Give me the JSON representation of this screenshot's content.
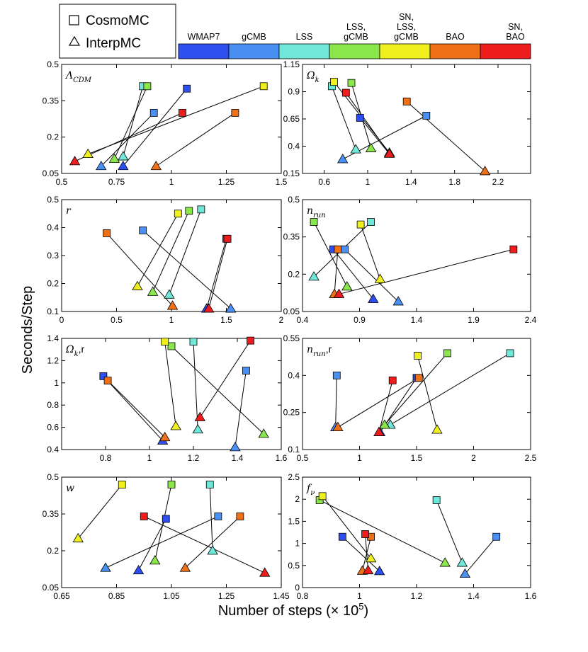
{
  "chart_data": {
    "type": "scatter",
    "x_axis_label": "Number of steps (× 10",
    "x_axis_label_sup": "5",
    "x_axis_label_end": ")",
    "y_axis_label": "Seconds/Step",
    "legend": [
      {
        "name": "CosmoMC",
        "marker": "square"
      },
      {
        "name": "InterpMC",
        "marker": "triangle"
      }
    ],
    "colorbar": [
      {
        "lines": [
          "WMAP7"
        ],
        "color": "#2d4ef0"
      },
      {
        "lines": [
          "gCMB"
        ],
        "color": "#4a8ff2"
      },
      {
        "lines": [
          "LSS"
        ],
        "color": "#6fe8d9"
      },
      {
        "lines": [
          "LSS,",
          "gCMB"
        ],
        "color": "#8ae64a"
      },
      {
        "lines": [
          "SN,",
          "LSS,",
          "gCMB"
        ],
        "color": "#f0f01e"
      },
      {
        "lines": [
          "BAO"
        ],
        "color": "#f07018"
      },
      {
        "lines": [
          "SN,",
          "BAO"
        ],
        "color": "#ee1c1c"
      }
    ],
    "panels": [
      {
        "label": "Λ",
        "sub": "CDM",
        "xlim": [
          0.5,
          1.5
        ],
        "ylim": [
          0.05,
          0.5
        ],
        "xticks": [
          "0.5",
          "0.75",
          "1",
          "1.25",
          "1.5"
        ],
        "yticks": [
          "0.05",
          "0.2",
          "0.35",
          "0.5"
        ],
        "xticks_v": [
          0.5,
          0.75,
          1,
          1.25,
          1.5
        ],
        "yticks_v": [
          0.05,
          0.2,
          0.35,
          0.5
        ],
        "pairs": [
          {
            "set": "WMAP7",
            "cosmo": [
              1.07,
              0.4
            ],
            "interp": [
              0.78,
              0.08
            ]
          },
          {
            "set": "gCMB",
            "cosmo": [
              0.92,
              0.3
            ],
            "interp": [
              0.68,
              0.08
            ]
          },
          {
            "set": "LSS",
            "cosmo": [
              0.87,
              0.41
            ],
            "interp": [
              0.78,
              0.12
            ]
          },
          {
            "set": "LSS,gCMB",
            "cosmo": [
              0.89,
              0.41
            ],
            "interp": [
              0.74,
              0.11
            ]
          },
          {
            "set": "SN,LSS,gCMB",
            "cosmo": [
              1.42,
              0.41
            ],
            "interp": [
              0.62,
              0.13
            ]
          },
          {
            "set": "BAO",
            "cosmo": [
              1.29,
              0.3
            ],
            "interp": [
              0.93,
              0.08
            ]
          },
          {
            "set": "SN,BAO",
            "cosmo": [
              1.05,
              0.3
            ],
            "interp": [
              0.56,
              0.1
            ]
          }
        ]
      },
      {
        "label": "Ω",
        "sub": "k",
        "xlim": [
          0.4,
          2.5
        ],
        "ylim": [
          0.15,
          1.15
        ],
        "xticks": [
          "0.6",
          "1",
          "1.4",
          "1.8",
          "2.2"
        ],
        "yticks": [
          "0.15",
          "0.4",
          "0.65",
          "0.9",
          "1.15"
        ],
        "xticks_v": [
          0.6,
          1,
          1.4,
          1.8,
          2.2
        ],
        "yticks_v": [
          0.15,
          0.4,
          0.65,
          0.9,
          1.15
        ],
        "pairs": [
          {
            "set": "WMAP7",
            "cosmo": [
              0.93,
              0.66
            ],
            "interp": [
              1.2,
              0.33
            ]
          },
          {
            "set": "gCMB",
            "cosmo": [
              1.54,
              0.68
            ],
            "interp": [
              0.77,
              0.28
            ]
          },
          {
            "set": "LSS",
            "cosmo": [
              0.67,
              0.95
            ],
            "interp": [
              0.89,
              0.37
            ]
          },
          {
            "set": "LSS,gCMB",
            "cosmo": [
              0.85,
              0.98
            ],
            "interp": [
              1.03,
              0.38
            ]
          },
          {
            "set": "SN,LSS,gCMB",
            "cosmo": [
              0.69,
              0.99
            ],
            "interp": [
              1.2,
              0.34
            ]
          },
          {
            "set": "BAO",
            "cosmo": [
              1.36,
              0.81
            ],
            "interp": [
              2.08,
              0.17
            ]
          },
          {
            "set": "SN,BAO",
            "cosmo": [
              0.8,
              0.89
            ],
            "interp": [
              1.2,
              0.33
            ]
          }
        ]
      },
      {
        "label": "r",
        "sub": "",
        "xlim": [
          0,
          2
        ],
        "ylim": [
          0.1,
          0.5
        ],
        "xticks": [
          "0",
          "0.5",
          "1",
          "1.5",
          "2"
        ],
        "yticks": [
          "0.1",
          "0.2",
          "0.3",
          "0.4",
          "0.5"
        ],
        "xticks_v": [
          0,
          0.5,
          1,
          1.5,
          2
        ],
        "yticks_v": [
          0.1,
          0.2,
          0.3,
          0.4,
          0.5
        ],
        "pairs": [
          {
            "set": "WMAP7",
            "cosmo": [
              1.5,
              0.36
            ],
            "interp": [
              1.32,
              0.11
            ]
          },
          {
            "set": "gCMB",
            "cosmo": [
              0.74,
              0.39
            ],
            "interp": [
              1.54,
              0.11
            ]
          },
          {
            "set": "LSS",
            "cosmo": [
              1.27,
              0.465
            ],
            "interp": [
              0.98,
              0.16
            ]
          },
          {
            "set": "LSS,gCMB",
            "cosmo": [
              1.16,
              0.46
            ],
            "interp": [
              0.83,
              0.17
            ]
          },
          {
            "set": "SN,LSS,gCMB",
            "cosmo": [
              1.06,
              0.45
            ],
            "interp": [
              0.69,
              0.19
            ]
          },
          {
            "set": "BAO",
            "cosmo": [
              0.41,
              0.38
            ],
            "interp": [
              1.01,
              0.12
            ]
          },
          {
            "set": "SN,BAO",
            "cosmo": [
              1.51,
              0.36
            ],
            "interp": [
              1.34,
              0.11
            ]
          }
        ]
      },
      {
        "label": "n",
        "sub": "run",
        "xlim": [
          0.4,
          2.4
        ],
        "ylim": [
          0.05,
          0.5
        ],
        "xticks": [
          "0.4",
          "0.9",
          "1.4",
          "1.9",
          "2.4"
        ],
        "yticks": [
          "0.05",
          "0.2",
          "0.35",
          "0.5"
        ],
        "xticks_v": [
          0.4,
          0.9,
          1.4,
          1.9,
          2.4
        ],
        "yticks_v": [
          0.05,
          0.2,
          0.35,
          0.5
        ],
        "pairs": [
          {
            "set": "WMAP7",
            "cosmo": [
              0.67,
              0.3
            ],
            "interp": [
              1.02,
              0.1
            ]
          },
          {
            "set": "gCMB",
            "cosmo": [
              0.77,
              0.3
            ],
            "interp": [
              1.24,
              0.09
            ]
          },
          {
            "set": "LSS",
            "cosmo": [
              1.0,
              0.41
            ],
            "interp": [
              0.5,
              0.19
            ]
          },
          {
            "set": "LSS,gCMB",
            "cosmo": [
              0.5,
              0.41
            ],
            "interp": [
              0.79,
              0.15
            ]
          },
          {
            "set": "SN,LSS,gCMB",
            "cosmo": [
              0.91,
              0.4
            ],
            "interp": [
              1.08,
              0.18
            ]
          },
          {
            "set": "BAO",
            "cosmo": [
              0.71,
              0.3
            ],
            "interp": [
              0.68,
              0.12
            ]
          },
          {
            "set": "SN,BAO",
            "cosmo": [
              2.25,
              0.3
            ],
            "interp": [
              0.72,
              0.12
            ]
          }
        ]
      },
      {
        "label": "Ω",
        "sub": "k",
        "tail": ",r",
        "xlim": [
          0.6,
          1.6
        ],
        "ylim": [
          0.4,
          1.4
        ],
        "xticks": [
          "0.8",
          "1",
          "1.2",
          "1.4",
          "1.6"
        ],
        "yticks": [
          "0.4",
          "0.6",
          "0.8",
          "1",
          "1.2",
          "1.4"
        ],
        "xticks_v": [
          0.8,
          1,
          1.2,
          1.4,
          1.6
        ],
        "yticks_v": [
          0.4,
          0.6,
          0.8,
          1,
          1.2,
          1.4
        ],
        "pairs": [
          {
            "set": "WMAP7",
            "cosmo": [
              0.79,
              1.06
            ],
            "interp": [
              1.06,
              0.48
            ]
          },
          {
            "set": "gCMB",
            "cosmo": [
              1.44,
              1.11
            ],
            "interp": [
              1.39,
              0.42
            ]
          },
          {
            "set": "LSS",
            "cosmo": [
              1.2,
              1.37
            ],
            "interp": [
              1.22,
              0.58
            ]
          },
          {
            "set": "LSS,gCMB",
            "cosmo": [
              1.1,
              1.33
            ],
            "interp": [
              1.52,
              0.54
            ]
          },
          {
            "set": "SN,LSS,gCMB",
            "cosmo": [
              1.07,
              1.37
            ],
            "interp": [
              1.12,
              0.61
            ]
          },
          {
            "set": "BAO",
            "cosmo": [
              0.81,
              1.02
            ],
            "interp": [
              1.07,
              0.51
            ]
          },
          {
            "set": "SN,BAO",
            "cosmo": [
              1.46,
              1.38
            ],
            "interp": [
              1.23,
              0.69
            ]
          }
        ]
      },
      {
        "label": "n",
        "sub": "run",
        "tail": ",r",
        "xlim": [
          0.5,
          2.5
        ],
        "ylim": [
          0.1,
          0.55
        ],
        "xticks": [
          "0.5",
          "1",
          "1.5",
          "2",
          "2.5"
        ],
        "yticks": [
          "0.1",
          "0.25",
          "0.4",
          "0.55"
        ],
        "xticks_v": [
          0.5,
          1,
          1.5,
          2,
          2.5
        ],
        "yticks_v": [
          0.1,
          0.25,
          0.4,
          0.55
        ],
        "pairs": [
          {
            "set": "WMAP7",
            "cosmo": [
              1.5,
              0.39
            ],
            "interp": [
              1.18,
              0.17
            ]
          },
          {
            "set": "gCMB",
            "cosmo": [
              0.8,
              0.4
            ],
            "interp": [
              0.79,
              0.19
            ]
          },
          {
            "set": "LSS",
            "cosmo": [
              2.32,
              0.49
            ],
            "interp": [
              1.27,
              0.2
            ]
          },
          {
            "set": "LSS,gCMB",
            "cosmo": [
              1.77,
              0.49
            ],
            "interp": [
              1.22,
              0.2
            ]
          },
          {
            "set": "SN,LSS,gCMB",
            "cosmo": [
              1.51,
              0.48
            ],
            "interp": [
              1.68,
              0.18
            ]
          },
          {
            "set": "BAO",
            "cosmo": [
              1.52,
              0.39
            ],
            "interp": [
              0.81,
              0.19
            ]
          },
          {
            "set": "SN,BAO",
            "cosmo": [
              1.29,
              0.38
            ],
            "interp": [
              1.17,
              0.17
            ]
          }
        ]
      },
      {
        "label": "w",
        "sub": "",
        "xlim": [
          0.65,
          1.45
        ],
        "ylim": [
          0.05,
          0.5
        ],
        "xticks": [
          "0.65",
          "0.85",
          "1.05",
          "1.25",
          "1.45"
        ],
        "yticks": [
          "0.05",
          "0.2",
          "0.35",
          "0.5"
        ],
        "xticks_v": [
          0.65,
          0.85,
          1.05,
          1.25,
          1.45
        ],
        "yticks_v": [
          0.05,
          0.2,
          0.35,
          0.5
        ],
        "pairs": [
          {
            "set": "WMAP7",
            "cosmo": [
              1.03,
              0.33
            ],
            "interp": [
              0.93,
              0.12
            ]
          },
          {
            "set": "gCMB",
            "cosmo": [
              1.22,
              0.34
            ],
            "interp": [
              0.81,
              0.13
            ]
          },
          {
            "set": "LSS",
            "cosmo": [
              1.19,
              0.47
            ],
            "interp": [
              1.2,
              0.2
            ]
          },
          {
            "set": "LSS,gCMB",
            "cosmo": [
              1.05,
              0.47
            ],
            "interp": [
              0.99,
              0.16
            ]
          },
          {
            "set": "SN,LSS,gCMB",
            "cosmo": [
              0.87,
              0.47
            ],
            "interp": [
              0.71,
              0.25
            ]
          },
          {
            "set": "BAO",
            "cosmo": [
              1.3,
              0.34
            ],
            "interp": [
              1.1,
              0.13
            ]
          },
          {
            "set": "SN,BAO",
            "cosmo": [
              0.95,
              0.34
            ],
            "interp": [
              1.39,
              0.11
            ]
          }
        ]
      },
      {
        "label": "f",
        "sub": "ν",
        "xlim": [
          0.8,
          1.6
        ],
        "ylim": [
          0,
          2.5
        ],
        "xticks": [
          "0.8",
          "1",
          "1.2",
          "1.4",
          "1.6"
        ],
        "yticks": [
          "0",
          "0.5",
          "1",
          "1.5",
          "2",
          "2.5"
        ],
        "xticks_v": [
          0.8,
          1,
          1.2,
          1.4,
          1.6
        ],
        "yticks_v": [
          0,
          0.5,
          1,
          1.5,
          2,
          2.5
        ],
        "pairs": [
          {
            "set": "WMAP7",
            "cosmo": [
              0.94,
              1.15
            ],
            "interp": [
              1.07,
              0.37
            ]
          },
          {
            "set": "gCMB",
            "cosmo": [
              1.48,
              1.15
            ],
            "interp": [
              1.37,
              0.31
            ]
          },
          {
            "set": "LSS",
            "cosmo": [
              1.27,
              1.98
            ],
            "interp": [
              1.36,
              0.56
            ]
          },
          {
            "set": "LSS,gCMB",
            "cosmo": [
              0.86,
              1.98
            ],
            "interp": [
              1.3,
              0.56
            ]
          },
          {
            "set": "SN,LSS,gCMB",
            "cosmo": [
              0.87,
              2.07
            ],
            "interp": [
              1.04,
              0.66
            ]
          },
          {
            "set": "BAO",
            "cosmo": [
              1.04,
              1.15
            ],
            "interp": [
              1.01,
              0.38
            ]
          },
          {
            "set": "SN,BAO",
            "cosmo": [
              1.02,
              1.21
            ],
            "interp": [
              1.03,
              0.39
            ]
          }
        ]
      }
    ]
  }
}
